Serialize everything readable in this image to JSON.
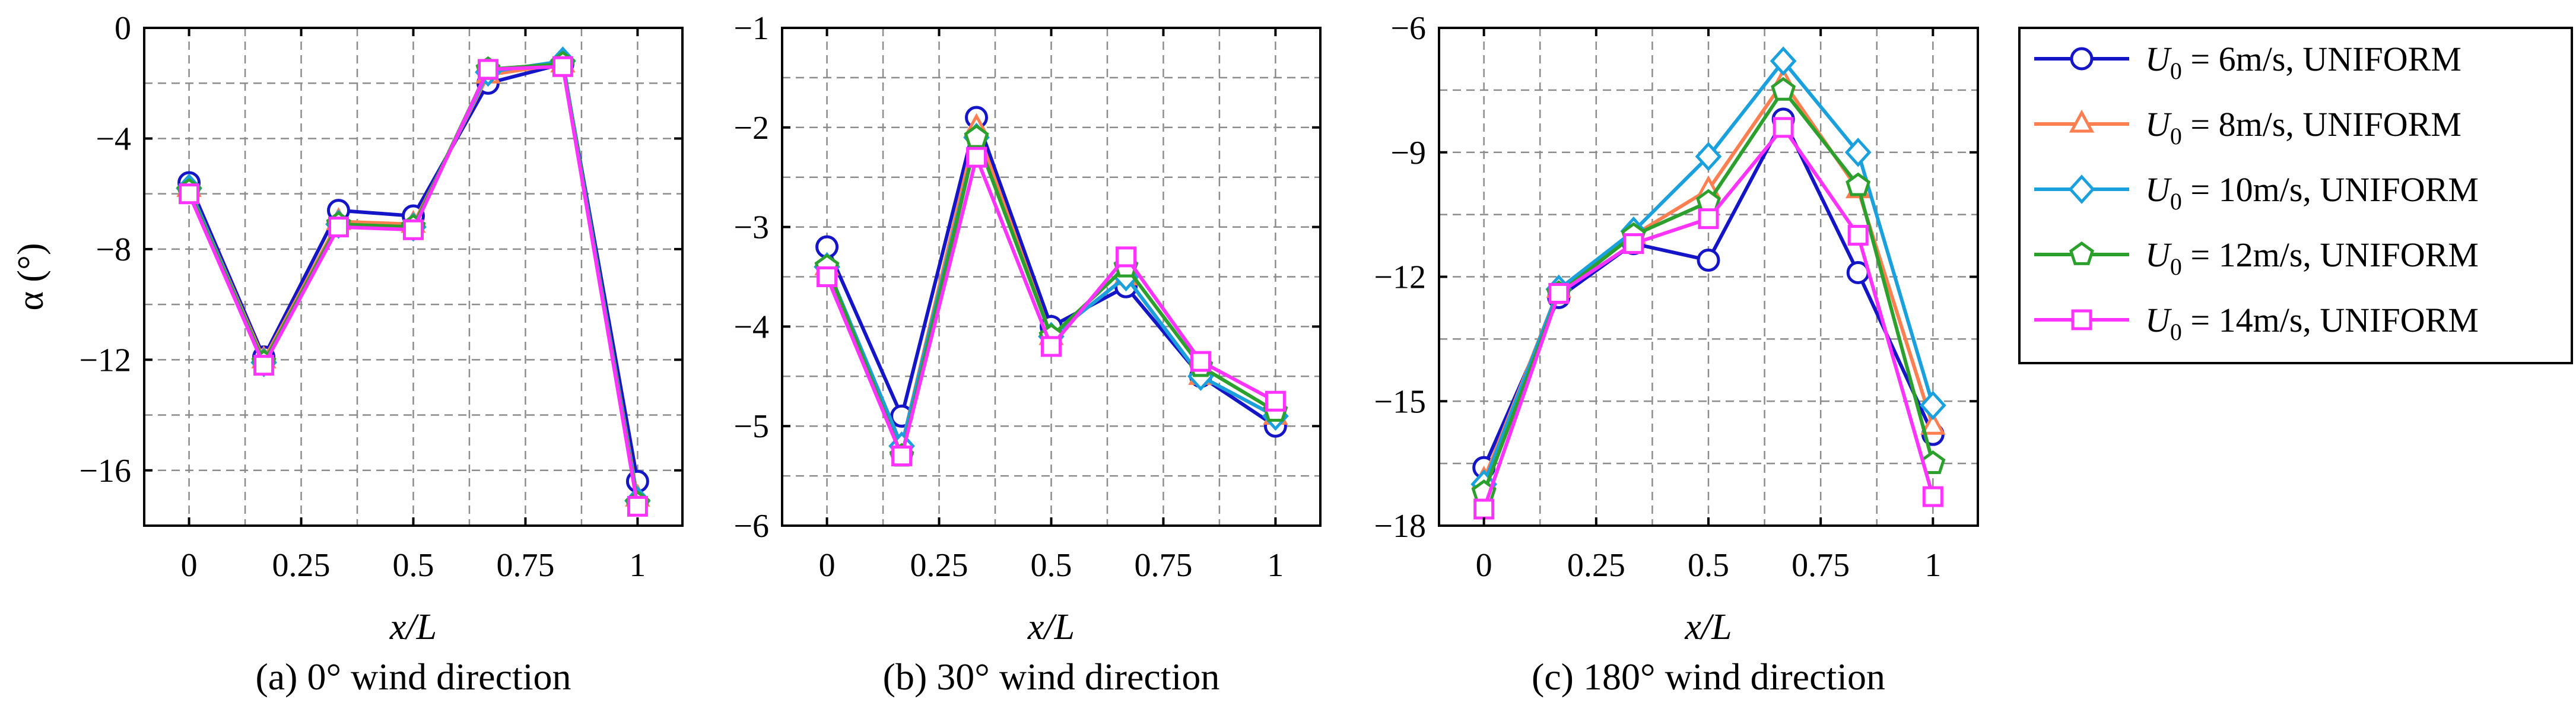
{
  "legend": {
    "location": "outside-right",
    "entries": [
      {
        "prefix": "U",
        "sub": "0",
        "suffix": " = 6m/s, UNIFORM"
      },
      {
        "prefix": "U",
        "sub": "0",
        "suffix": " = 8m/s, UNIFORM"
      },
      {
        "prefix": "U",
        "sub": "0",
        "suffix": " = 10m/s, UNIFORM"
      },
      {
        "prefix": "U",
        "sub": "0",
        "suffix": " = 12m/s, UNIFORM"
      },
      {
        "prefix": "U",
        "sub": "0",
        "suffix": " = 14m/s, UNIFORM"
      }
    ]
  },
  "series_styles": [
    {
      "name": "U0 = 6m/s, UNIFORM",
      "color": "#1515c8",
      "marker": "circle"
    },
    {
      "name": "U0 = 8m/s, UNIFORM",
      "color": "#ff7f50",
      "marker": "triangle"
    },
    {
      "name": "U0 = 10m/s, UNIFORM",
      "color": "#1aa0dc",
      "marker": "diamond"
    },
    {
      "name": "U0 = 12m/s, UNIFORM",
      "color": "#2ca02c",
      "marker": "pentagon"
    },
    {
      "name": "U0 = 14m/s, UNIFORM",
      "color": "#ff33ff",
      "marker": "square"
    }
  ],
  "chart_data": [
    {
      "type": "line",
      "title": "(a) 0° wind direction",
      "xlabel": "x/L",
      "ylabel": "α (°)",
      "x": [
        0,
        0.1667,
        0.3333,
        0.5,
        0.6667,
        0.8333,
        1
      ],
      "xlim": [
        -0.1,
        1.1
      ],
      "ylim": [
        -18,
        0
      ],
      "xticks": [
        0,
        0.25,
        0.5,
        0.75,
        1
      ],
      "xtick_labels": [
        "0",
        "0.25",
        "0.5",
        "0.75",
        "1"
      ],
      "yticks": [
        -16,
        -12,
        -8,
        -4,
        0
      ],
      "ytick_labels": [
        "−16",
        "−12",
        "−8",
        "−4",
        "0"
      ],
      "grid": true,
      "series": [
        {
          "name": "U0 = 6m/s, UNIFORM",
          "values": [
            -5.6,
            -11.9,
            -6.6,
            -6.8,
            -2.0,
            -1.3,
            -16.4
          ]
        },
        {
          "name": "U0 = 8m/s, UNIFORM",
          "values": [
            -5.8,
            -12.0,
            -7.0,
            -7.1,
            -1.7,
            -1.3,
            -17.0
          ]
        },
        {
          "name": "U0 = 10m/s, UNIFORM",
          "values": [
            -5.8,
            -12.1,
            -7.1,
            -7.2,
            -1.6,
            -1.2,
            -17.1
          ]
        },
        {
          "name": "U0 = 12m/s, UNIFORM",
          "values": [
            -5.9,
            -12.1,
            -7.1,
            -7.2,
            -1.5,
            -1.3,
            -17.2
          ]
        },
        {
          "name": "U0 = 14m/s, UNIFORM",
          "values": [
            -6.0,
            -12.2,
            -7.2,
            -7.3,
            -1.5,
            -1.4,
            -17.3
          ]
        }
      ]
    },
    {
      "type": "line",
      "title": "(b) 30° wind direction",
      "xlabel": "x/L",
      "ylabel": "",
      "x": [
        0,
        0.1667,
        0.3333,
        0.5,
        0.6667,
        0.8333,
        1
      ],
      "xlim": [
        -0.1,
        1.1
      ],
      "ylim": [
        -6,
        -1
      ],
      "xticks": [
        0,
        0.25,
        0.5,
        0.75,
        1
      ],
      "xtick_labels": [
        "0",
        "0.25",
        "0.5",
        "0.75",
        "1"
      ],
      "yticks": [
        -6,
        -5,
        -4,
        -3,
        -2,
        -1
      ],
      "ytick_labels": [
        "−6",
        "−5",
        "−4",
        "−3",
        "−2",
        "−1"
      ],
      "grid": true,
      "series": [
        {
          "name": "U0 = 6m/s, UNIFORM",
          "values": [
            -3.2,
            -4.9,
            -1.9,
            -4.0,
            -3.6,
            -4.5,
            -5.0
          ]
        },
        {
          "name": "U0 = 8m/s, UNIFORM",
          "values": [
            -3.4,
            -5.2,
            -2.0,
            -4.1,
            -3.5,
            -4.5,
            -4.9
          ]
        },
        {
          "name": "U0 = 10m/s, UNIFORM",
          "values": [
            -3.4,
            -5.2,
            -2.1,
            -4.1,
            -3.5,
            -4.5,
            -4.9
          ]
        },
        {
          "name": "U0 = 12m/s, UNIFORM",
          "values": [
            -3.4,
            -5.3,
            -2.1,
            -4.1,
            -3.4,
            -4.4,
            -4.85
          ]
        },
        {
          "name": "U0 = 14m/s, UNIFORM",
          "values": [
            -3.5,
            -5.3,
            -2.3,
            -4.2,
            -3.3,
            -4.35,
            -4.75
          ]
        }
      ]
    },
    {
      "type": "line",
      "title": "(c) 180° wind direction",
      "xlabel": "x/L",
      "ylabel": "",
      "x": [
        0,
        0.1667,
        0.3333,
        0.5,
        0.6667,
        0.8333,
        1
      ],
      "xlim": [
        -0.1,
        1.1
      ],
      "ylim": [
        -18,
        -6
      ],
      "xticks": [
        0,
        0.25,
        0.5,
        0.75,
        1
      ],
      "xtick_labels": [
        "0",
        "0.25",
        "0.5",
        "0.75",
        "1"
      ],
      "yticks": [
        -18,
        -15,
        -12,
        -9,
        -6
      ],
      "ytick_labels": [
        "−18",
        "−15",
        "−12",
        "−9",
        "−6"
      ],
      "grid": true,
      "series": [
        {
          "name": "U0 = 6m/s, UNIFORM",
          "values": [
            -16.6,
            -12.5,
            -11.2,
            -11.6,
            -8.2,
            -11.9,
            -15.8
          ]
        },
        {
          "name": "U0 = 8m/s, UNIFORM",
          "values": [
            -16.9,
            -12.3,
            -11.0,
            -9.9,
            -7.3,
            -9.9,
            -15.6
          ]
        },
        {
          "name": "U0 = 10m/s, UNIFORM",
          "values": [
            -17.0,
            -12.3,
            -10.9,
            -9.1,
            -6.8,
            -9.0,
            -15.1
          ]
        },
        {
          "name": "U0 = 12m/s, UNIFORM",
          "values": [
            -17.2,
            -12.4,
            -11.0,
            -10.2,
            -7.5,
            -9.8,
            -16.5
          ]
        },
        {
          "name": "U0 = 14m/s, UNIFORM",
          "values": [
            -17.6,
            -12.4,
            -11.2,
            -10.6,
            -8.4,
            -11.0,
            -17.3
          ]
        }
      ]
    }
  ]
}
